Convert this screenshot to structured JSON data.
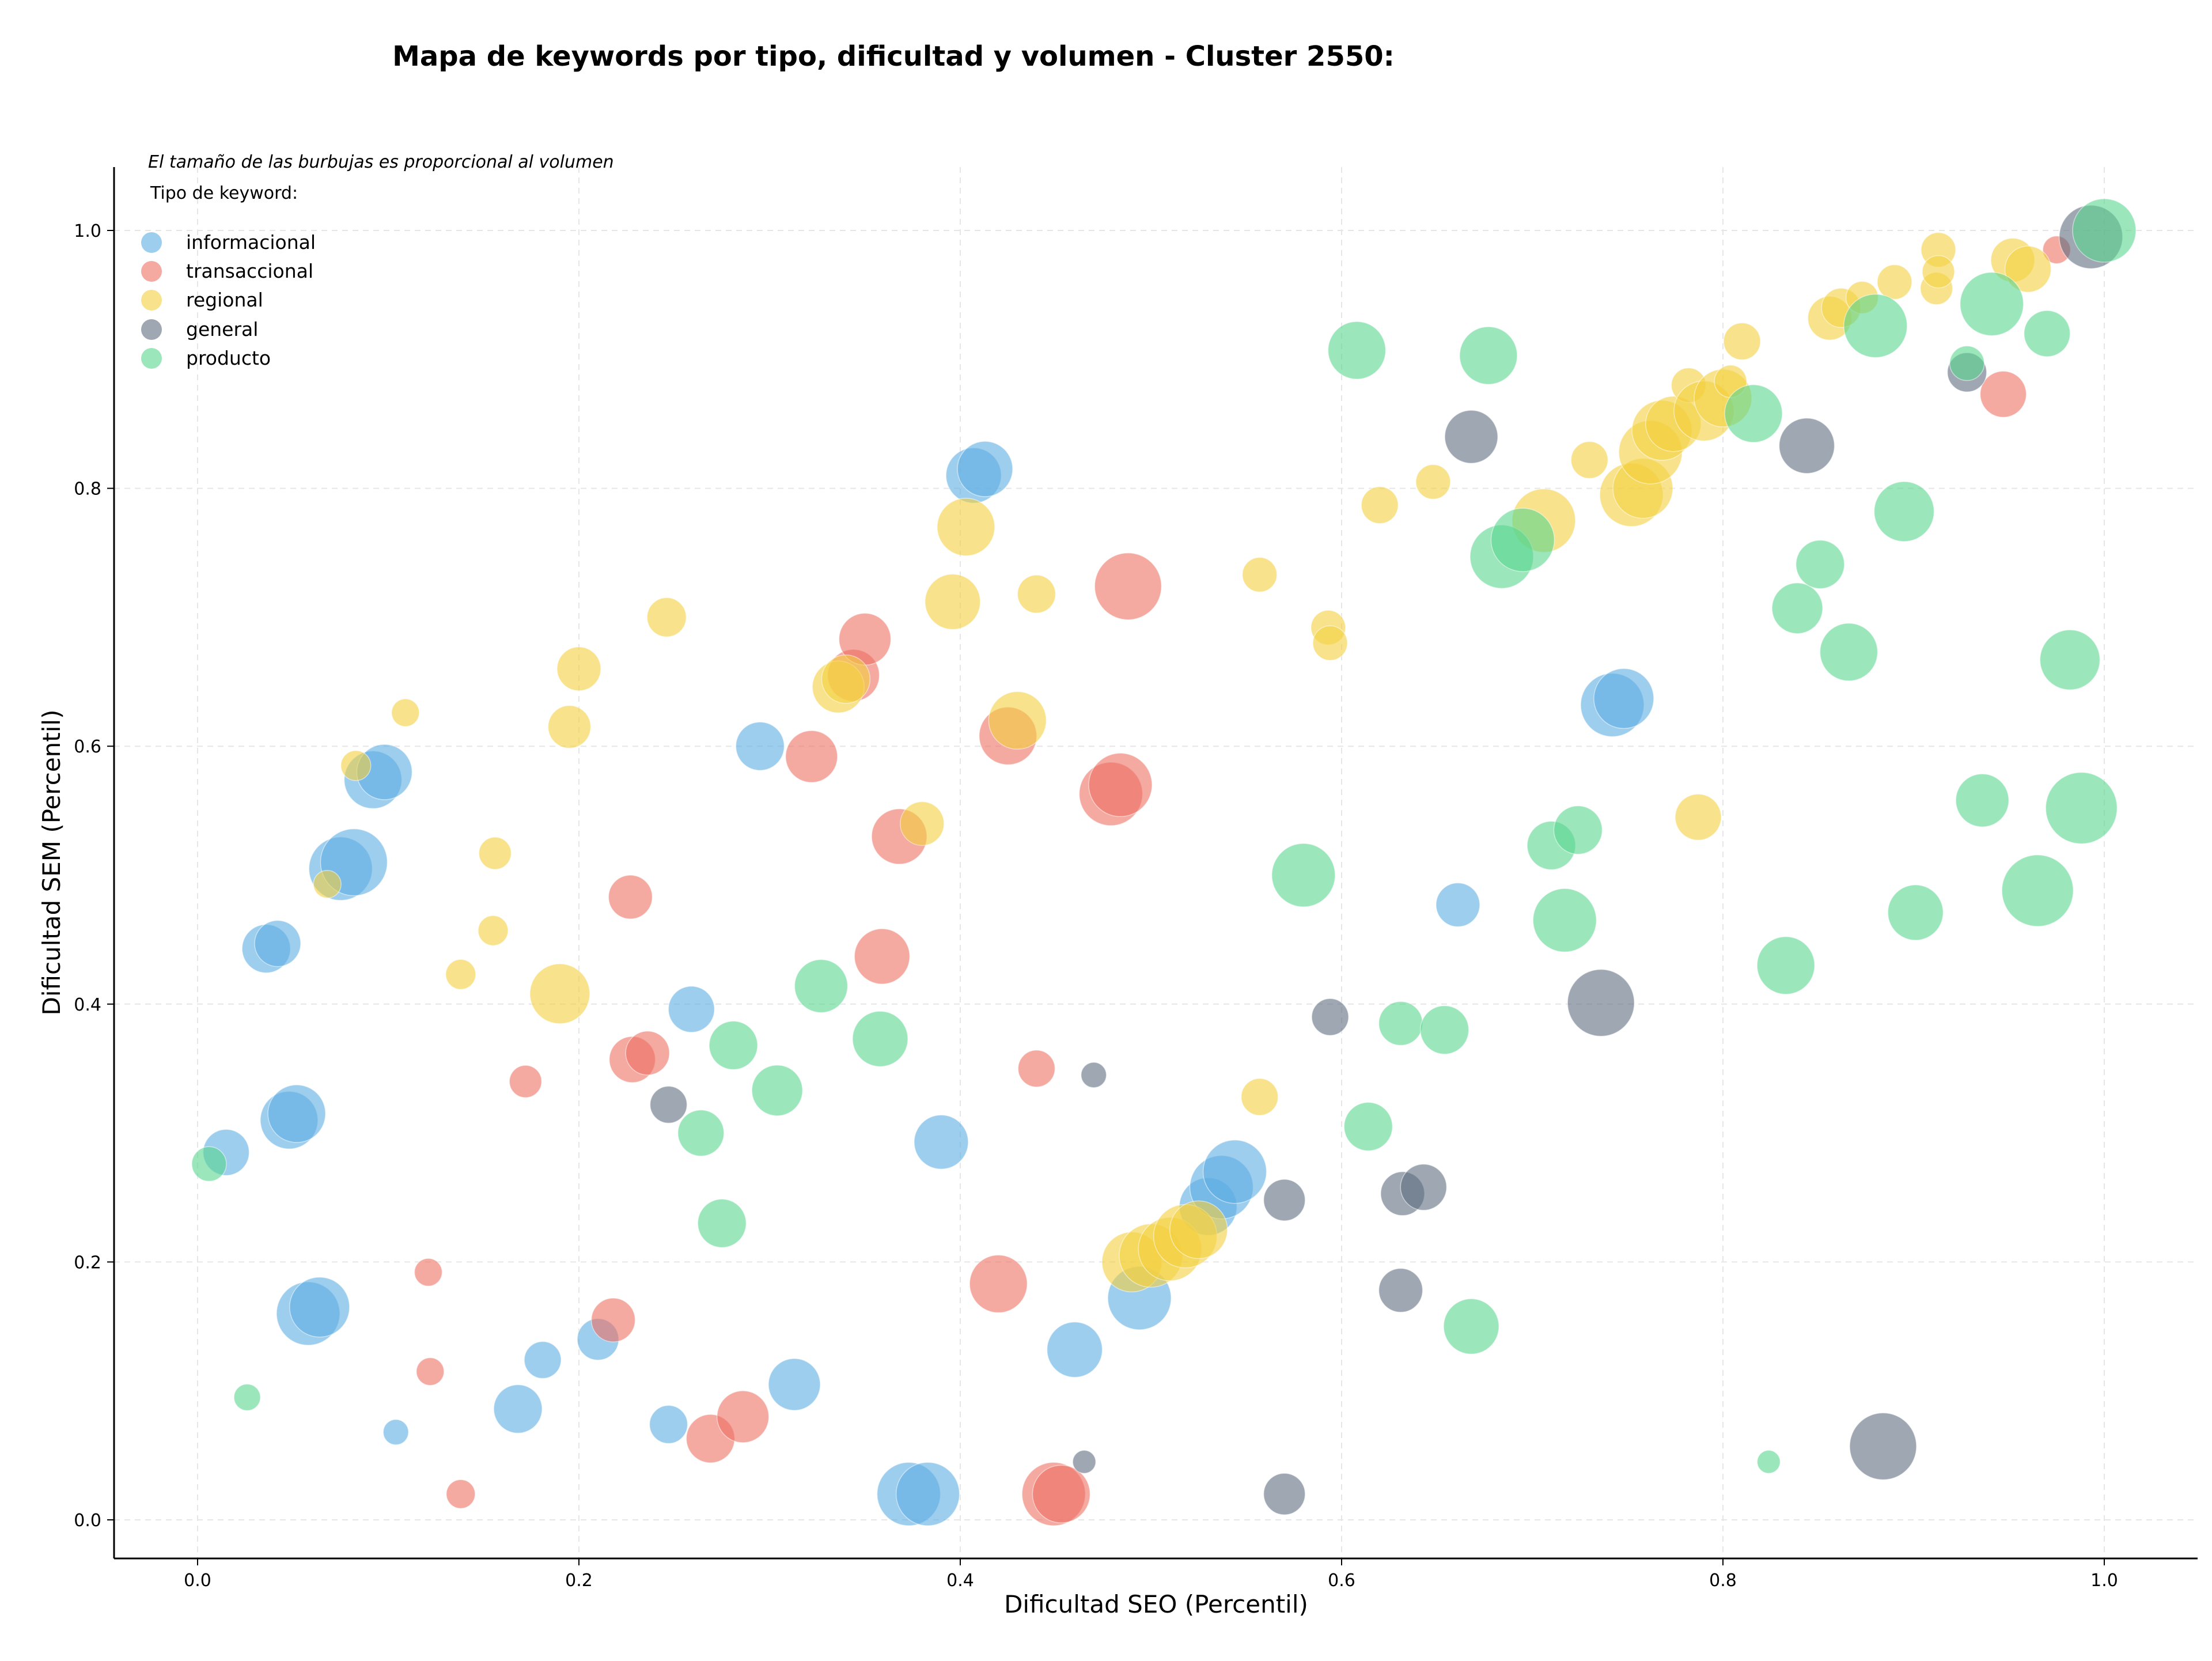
{
  "colors": {
    "informacional": "#5DADE2",
    "transaccional": "#EC7063",
    "regional": "#F4D03F",
    "general": "#5D6D7E",
    "producto": "#58D68D",
    "grid": "#e6e6e6",
    "axis": "#000000"
  },
  "chart_data": {
    "type": "scatter",
    "title": "Mapa de keywords por tipo, dificultad y volumen - Cluster 2550:",
    "xlabel": "Dificultad SEO (Percentil)",
    "ylabel": "Dificultad SEM (Percentil)",
    "xlim": [
      -0.045,
      1.05
    ],
    "ylim": [
      -0.028,
      1.05
    ],
    "xticks": [
      0.0,
      0.2,
      0.4,
      0.6,
      0.8,
      1.0
    ],
    "yticks": [
      0.0,
      0.2,
      0.4,
      0.6,
      0.8,
      1.0
    ],
    "xtick_labels": [
      "0.0",
      "0.2",
      "0.4",
      "0.6",
      "0.8",
      "1.0"
    ],
    "ytick_labels": [
      "0.0",
      "0.2",
      "0.4",
      "0.6",
      "0.8",
      "1.0"
    ],
    "grid": true,
    "note": "El tamaño de las burbujas es proporcional al volumen",
    "legend_title": "Tipo de keyword:",
    "legend_position": "top-left",
    "size_encoding": "volumen",
    "series": [
      {
        "name": "informacional",
        "color_key": "informacional",
        "points": [
          [
            0.015,
            0.285,
            40
          ],
          [
            0.048,
            0.31,
            50
          ],
          [
            0.052,
            0.315,
            50
          ],
          [
            0.036,
            0.443,
            42
          ],
          [
            0.042,
            0.447,
            40
          ],
          [
            0.075,
            0.505,
            55
          ],
          [
            0.082,
            0.51,
            58
          ],
          [
            0.092,
            0.574,
            50
          ],
          [
            0.098,
            0.58,
            48
          ],
          [
            0.058,
            0.16,
            55
          ],
          [
            0.064,
            0.165,
            52
          ],
          [
            0.104,
            0.068,
            22
          ],
          [
            0.168,
            0.086,
            42
          ],
          [
            0.181,
            0.124,
            32
          ],
          [
            0.21,
            0.14,
            36
          ],
          [
            0.247,
            0.074,
            33
          ],
          [
            0.259,
            0.396,
            40
          ],
          [
            0.295,
            0.6,
            42
          ],
          [
            0.313,
            0.105,
            45
          ],
          [
            0.39,
            0.293,
            47
          ],
          [
            0.373,
            0.02,
            55
          ],
          [
            0.383,
            0.02,
            55
          ],
          [
            0.407,
            0.81,
            48
          ],
          [
            0.413,
            0.815,
            48
          ],
          [
            0.46,
            0.132,
            48
          ],
          [
            0.494,
            0.172,
            55
          ],
          [
            0.53,
            0.243,
            50
          ],
          [
            0.537,
            0.258,
            55
          ],
          [
            0.544,
            0.27,
            55
          ],
          [
            0.742,
            0.632,
            55
          ],
          [
            0.748,
            0.637,
            52
          ],
          [
            0.661,
            0.477,
            38
          ]
        ]
      },
      {
        "name": "transaccional",
        "color_key": "transaccional",
        "points": [
          [
            0.121,
            0.192,
            24
          ],
          [
            0.122,
            0.115,
            24
          ],
          [
            0.138,
            0.02,
            25
          ],
          [
            0.172,
            0.34,
            28
          ],
          [
            0.218,
            0.155,
            38
          ],
          [
            0.227,
            0.483,
            38
          ],
          [
            0.228,
            0.357,
            40
          ],
          [
            0.236,
            0.362,
            38
          ],
          [
            0.269,
            0.063,
            42
          ],
          [
            0.286,
            0.08,
            45
          ],
          [
            0.322,
            0.592,
            45
          ],
          [
            0.344,
            0.655,
            45
          ],
          [
            0.35,
            0.683,
            45
          ],
          [
            0.359,
            0.437,
            48
          ],
          [
            0.368,
            0.53,
            48
          ],
          [
            0.42,
            0.183,
            50
          ],
          [
            0.425,
            0.608,
            50
          ],
          [
            0.44,
            0.35,
            32
          ],
          [
            0.449,
            0.02,
            55
          ],
          [
            0.453,
            0.02,
            50
          ],
          [
            0.479,
            0.563,
            55
          ],
          [
            0.484,
            0.57,
            55
          ],
          [
            0.488,
            0.724,
            58
          ],
          [
            0.975,
            0.985,
            24
          ],
          [
            0.947,
            0.873,
            40
          ]
        ]
      },
      {
        "name": "regional",
        "color_key": "regional",
        "points": [
          [
            0.068,
            0.493,
            24
          ],
          [
            0.083,
            0.585,
            26
          ],
          [
            0.109,
            0.626,
            24
          ],
          [
            0.138,
            0.423,
            26
          ],
          [
            0.155,
            0.457,
            26
          ],
          [
            0.156,
            0.517,
            28
          ],
          [
            0.19,
            0.408,
            52
          ],
          [
            0.195,
            0.615,
            37
          ],
          [
            0.2,
            0.66,
            38
          ],
          [
            0.246,
            0.7,
            34
          ],
          [
            0.336,
            0.646,
            45
          ],
          [
            0.34,
            0.652,
            42
          ],
          [
            0.38,
            0.54,
            38
          ],
          [
            0.396,
            0.712,
            48
          ],
          [
            0.403,
            0.77,
            50
          ],
          [
            0.43,
            0.62,
            50
          ],
          [
            0.44,
            0.718,
            33
          ],
          [
            0.49,
            0.2,
            52
          ],
          [
            0.5,
            0.205,
            55
          ],
          [
            0.51,
            0.21,
            55
          ],
          [
            0.518,
            0.22,
            55
          ],
          [
            0.525,
            0.225,
            50
          ],
          [
            0.557,
            0.733,
            30
          ],
          [
            0.557,
            0.328,
            32
          ],
          [
            0.593,
            0.692,
            30
          ],
          [
            0.594,
            0.68,
            30
          ],
          [
            0.62,
            0.787,
            32
          ],
          [
            0.648,
            0.805,
            30
          ],
          [
            0.706,
            0.775,
            55
          ],
          [
            0.73,
            0.822,
            32
          ],
          [
            0.752,
            0.795,
            55
          ],
          [
            0.758,
            0.8,
            52
          ],
          [
            0.762,
            0.828,
            55
          ],
          [
            0.768,
            0.845,
            52
          ],
          [
            0.774,
            0.85,
            48
          ],
          [
            0.782,
            0.88,
            30
          ],
          [
            0.79,
            0.86,
            52
          ],
          [
            0.8,
            0.87,
            50
          ],
          [
            0.804,
            0.883,
            28
          ],
          [
            0.81,
            0.914,
            32
          ],
          [
            0.787,
            0.545,
            40
          ],
          [
            0.856,
            0.932,
            38
          ],
          [
            0.862,
            0.94,
            34
          ],
          [
            0.873,
            0.948,
            28
          ],
          [
            0.89,
            0.96,
            30
          ],
          [
            0.913,
            0.985,
            30
          ],
          [
            0.912,
            0.955,
            28
          ],
          [
            0.913,
            0.968,
            28
          ],
          [
            0.952,
            0.977,
            38
          ],
          [
            0.96,
            0.97,
            40
          ]
        ]
      },
      {
        "name": "general",
        "color_key": "general",
        "points": [
          [
            0.247,
            0.322,
            32
          ],
          [
            0.465,
            0.045,
            20
          ],
          [
            0.47,
            0.345,
            22
          ],
          [
            0.57,
            0.248,
            36
          ],
          [
            0.57,
            0.02,
            36
          ],
          [
            0.594,
            0.39,
            32
          ],
          [
            0.632,
            0.253,
            38
          ],
          [
            0.643,
            0.258,
            40
          ],
          [
            0.631,
            0.178,
            38
          ],
          [
            0.668,
            0.84,
            46
          ],
          [
            0.736,
            0.401,
            58
          ],
          [
            0.844,
            0.833,
            48
          ],
          [
            0.884,
            0.057,
            58
          ],
          [
            0.928,
            0.89,
            34
          ],
          [
            0.993,
            0.995,
            55
          ]
        ]
      },
      {
        "name": "producto",
        "color_key": "producto",
        "points": [
          [
            0.006,
            0.276,
            30
          ],
          [
            0.026,
            0.095,
            23
          ],
          [
            0.264,
            0.3,
            40
          ],
          [
            0.275,
            0.23,
            42
          ],
          [
            0.281,
            0.368,
            42
          ],
          [
            0.304,
            0.333,
            44
          ],
          [
            0.327,
            0.414,
            46
          ],
          [
            0.358,
            0.373,
            48
          ],
          [
            0.58,
            0.5,
            55
          ],
          [
            0.608,
            0.907,
            50
          ],
          [
            0.614,
            0.305,
            42
          ],
          [
            0.631,
            0.385,
            38
          ],
          [
            0.654,
            0.38,
            42
          ],
          [
            0.668,
            0.15,
            48
          ],
          [
            0.677,
            0.903,
            50
          ],
          [
            0.684,
            0.747,
            55
          ],
          [
            0.695,
            0.76,
            55
          ],
          [
            0.71,
            0.523,
            42
          ],
          [
            0.717,
            0.465,
            55
          ],
          [
            0.724,
            0.535,
            42
          ],
          [
            0.816,
            0.858,
            50
          ],
          [
            0.824,
            0.045,
            20
          ],
          [
            0.833,
            0.43,
            50
          ],
          [
            0.839,
            0.707,
            44
          ],
          [
            0.851,
            0.741,
            42
          ],
          [
            0.866,
            0.673,
            50
          ],
          [
            0.88,
            0.926,
            55
          ],
          [
            0.895,
            0.782,
            52
          ],
          [
            0.901,
            0.471,
            48
          ],
          [
            0.928,
            0.897,
            30
          ],
          [
            0.936,
            0.558,
            46
          ],
          [
            0.941,
            0.943,
            55
          ],
          [
            0.965,
            0.488,
            62
          ],
          [
            0.97,
            0.92,
            40
          ],
          [
            0.982,
            0.667,
            52
          ],
          [
            0.988,
            0.552,
            62
          ],
          [
            1.0,
            1.0,
            55
          ]
        ]
      }
    ]
  }
}
